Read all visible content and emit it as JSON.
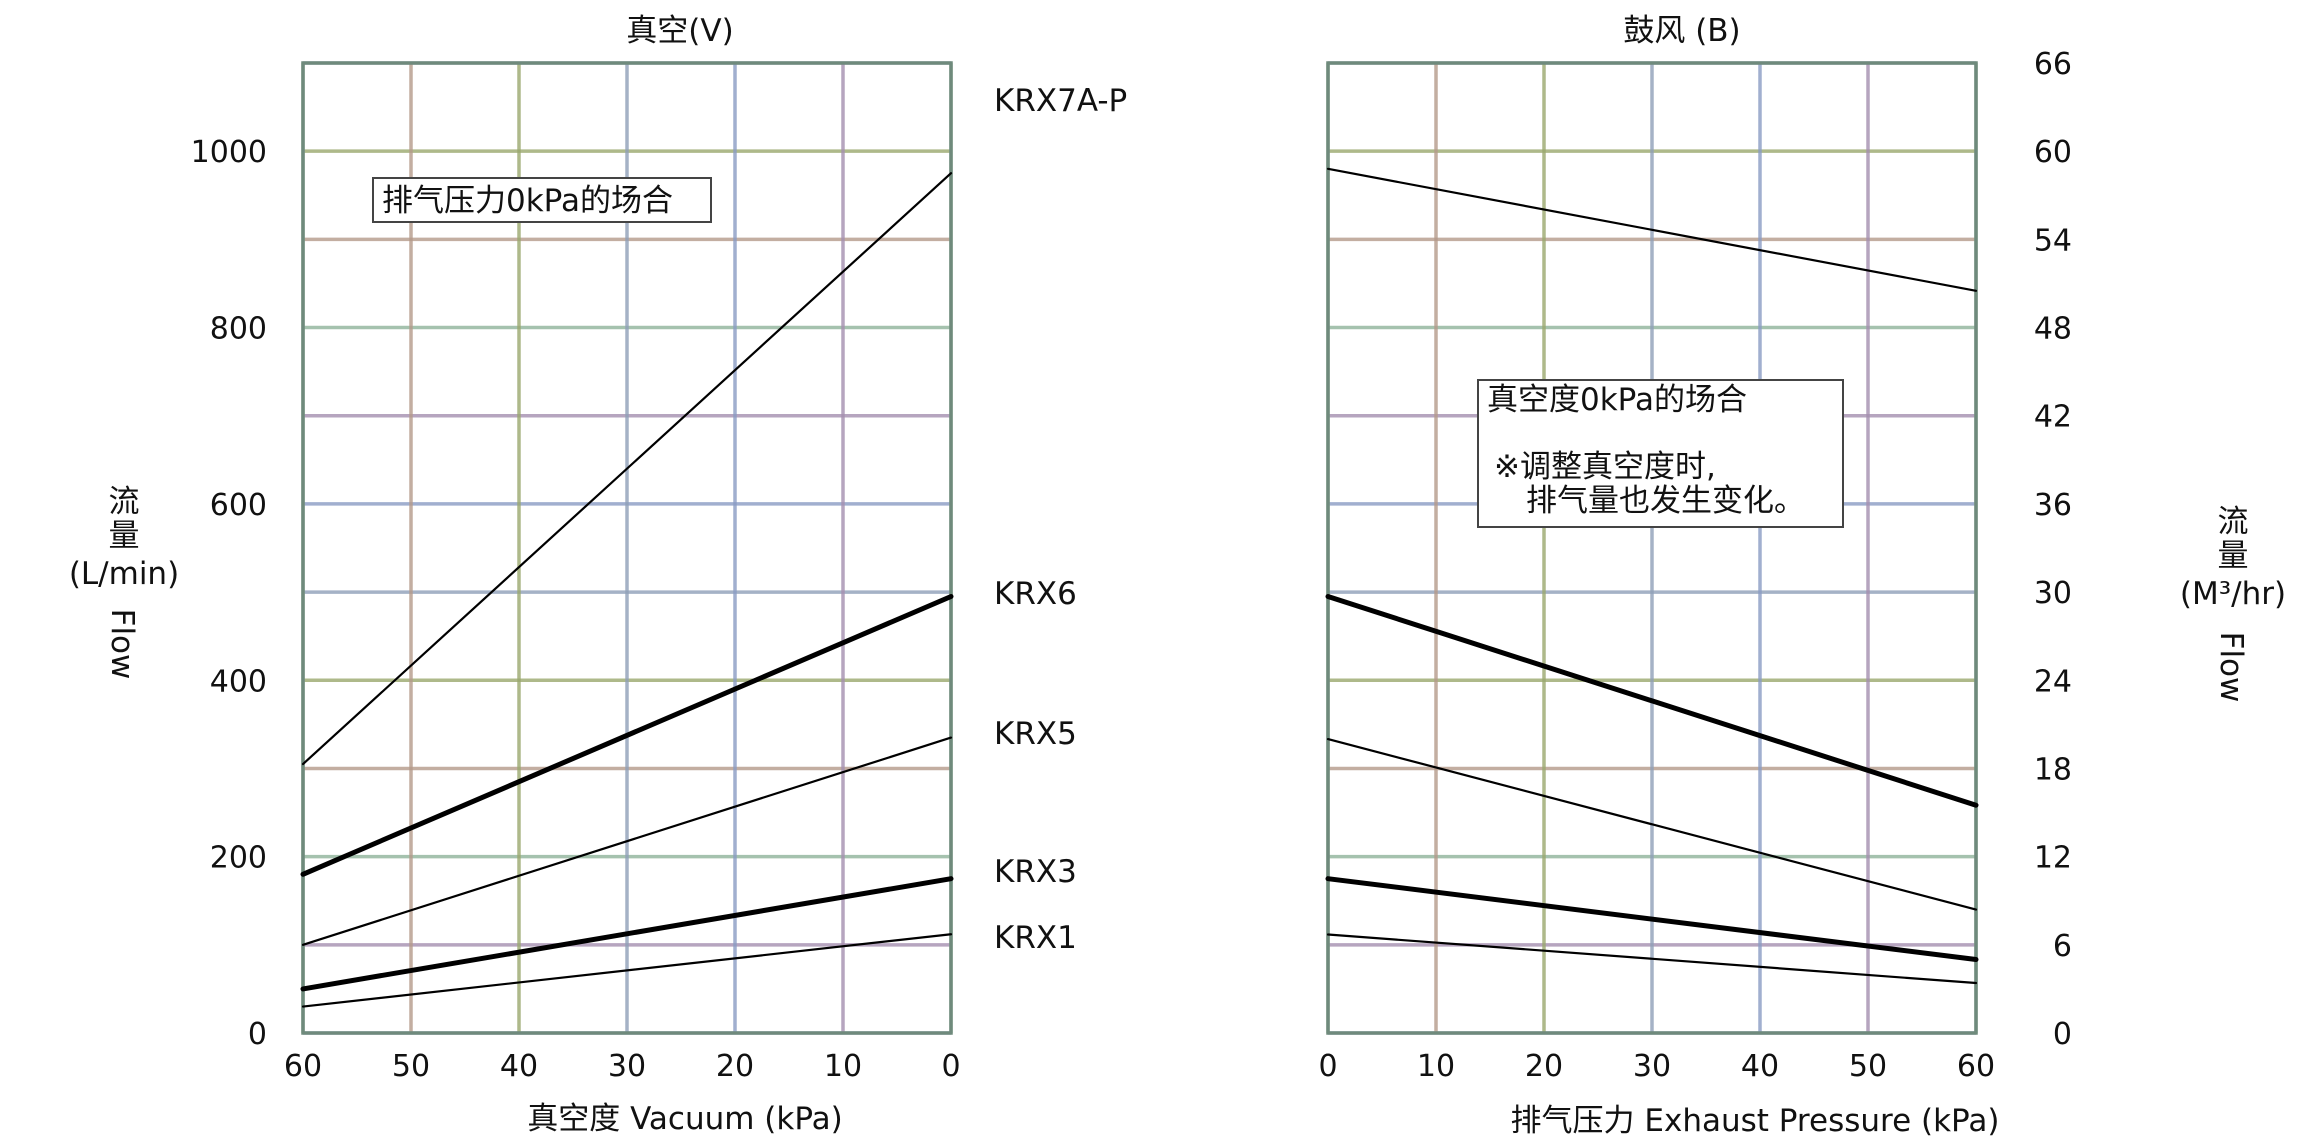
{
  "chart_data": [
    {
      "type": "line",
      "title": "真空(V)",
      "xlabel": "真空度 Vacuum (kPa)",
      "ylabel": "流量(L/min) Flow",
      "x_ticks": [
        "60",
        "50",
        "40",
        "30",
        "20",
        "10",
        "0"
      ],
      "y_ticks": [
        "0",
        "200",
        "400",
        "600",
        "800",
        "1000"
      ],
      "xlim": [
        60,
        0
      ],
      "ylim": [
        0,
        1100
      ],
      "grid": true,
      "note": "排气压力0kPa的场合",
      "series": [
        {
          "name": "KRX7A-P",
          "weight": "thin",
          "x": [
            60,
            0
          ],
          "y": [
            305,
            975
          ]
        },
        {
          "name": "KRX6",
          "weight": "thick",
          "x": [
            60,
            0
          ],
          "y": [
            180,
            495
          ]
        },
        {
          "name": "KRX5",
          "weight": "thin",
          "x": [
            60,
            0
          ],
          "y": [
            100,
            335
          ]
        },
        {
          "name": "KRX3",
          "weight": "thick",
          "x": [
            60,
            0
          ],
          "y": [
            50,
            175
          ]
        },
        {
          "name": "KRX1",
          "weight": "thin",
          "x": [
            60,
            0
          ],
          "y": [
            30,
            112
          ]
        }
      ]
    },
    {
      "type": "line",
      "title": "鼓风 (B)",
      "xlabel": "排气压力 Exhaust Pressure (kPa)",
      "ylabel": "流量(M³/hr) Flow",
      "x_ticks": [
        "0",
        "10",
        "20",
        "30",
        "40",
        "50",
        "60"
      ],
      "y_ticks": [
        "0",
        "6",
        "12",
        "18",
        "24",
        "30",
        "36",
        "42",
        "48",
        "54",
        "60",
        "66"
      ],
      "xlim": [
        0,
        60
      ],
      "ylim": [
        0,
        66
      ],
      "grid": true,
      "note_lines": [
        "真空度0kPa的场合",
        "※调整真空度时,",
        "排气量也发生变化。"
      ],
      "series": [
        {
          "name": "KRX7A-P",
          "weight": "thin",
          "x": [
            0,
            60
          ],
          "y": [
            58.8,
            50.5
          ]
        },
        {
          "name": "KRX6",
          "weight": "thick",
          "x": [
            0,
            60
          ],
          "y": [
            29.7,
            15.5
          ]
        },
        {
          "name": "KRX5",
          "weight": "thin",
          "x": [
            0,
            60
          ],
          "y": [
            20.0,
            8.4
          ]
        },
        {
          "name": "KRX3",
          "weight": "thick",
          "x": [
            0,
            60
          ],
          "y": [
            10.5,
            5.0
          ]
        },
        {
          "name": "KRX1",
          "weight": "thin",
          "x": [
            0,
            60
          ],
          "y": [
            6.7,
            3.4
          ]
        }
      ]
    }
  ],
  "left_ylabel_lines": [
    "流",
    "量",
    "(L/min)",
    "Flow"
  ],
  "right_ylabel_lines": [
    "流",
    "量",
    "(M³/hr)",
    "Flow"
  ]
}
